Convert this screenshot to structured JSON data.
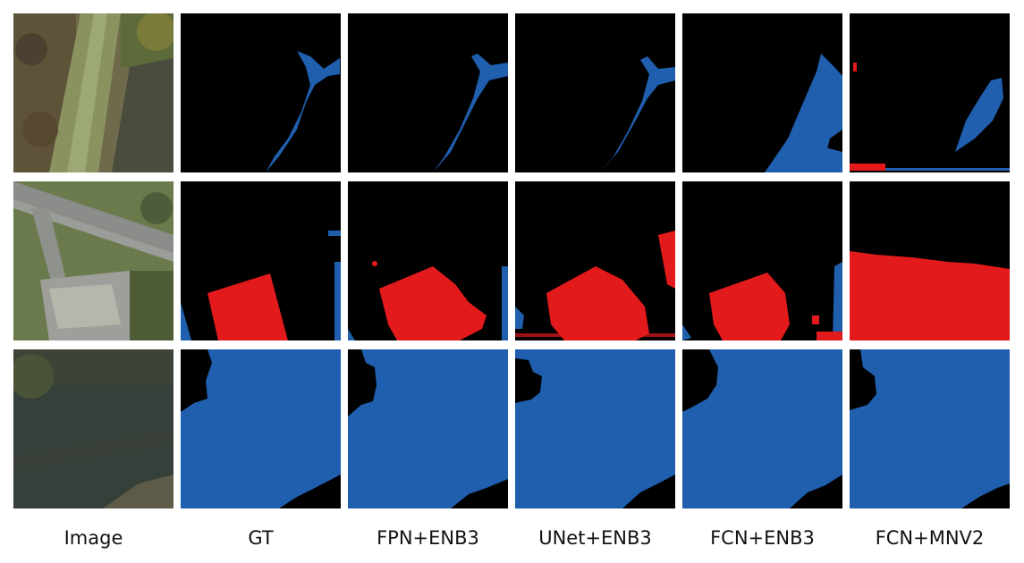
{
  "columns": [
    "Image",
    "GT",
    "FPN+ENB3",
    "UNet+ENB3",
    "FCN+ENB3",
    "FCN+MNV2"
  ],
  "colors": {
    "background_class": "#000000",
    "water_class": "#1f5fae",
    "building_class": "#e31a1c"
  }
}
